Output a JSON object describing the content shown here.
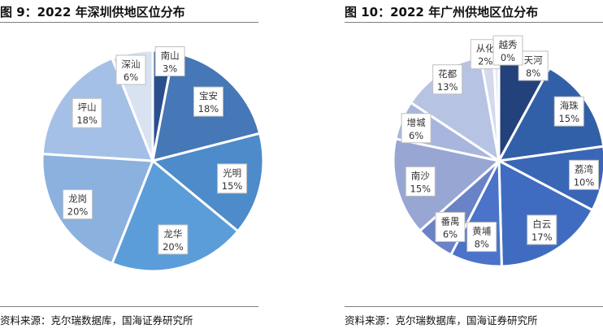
{
  "figures": [
    {
      "title": "图 9：2022 年深圳供地区位分布",
      "source": "资料来源：克尔瑞数据库，国海证券研究所"
    },
    {
      "title": "图 10：2022 年广州供地区位分布",
      "source": "资料来源：克尔瑞数据库，国海证券研究所"
    }
  ],
  "chart_data": [
    {
      "type": "pie",
      "title": "图 9：2022 年深圳供地区位分布",
      "categories": [
        "南山",
        "宝安",
        "光明",
        "龙华",
        "龙岗",
        "坪山",
        "深汕"
      ],
      "values": [
        3,
        18,
        15,
        20,
        20,
        18,
        6
      ],
      "labels": [
        "3%",
        "18%",
        "15%",
        "20%",
        "20%",
        "18%",
        "6%"
      ],
      "colors": [
        "#2a4f8c",
        "#4677b6",
        "#4d8bca",
        "#5b9dd9",
        "#8bb1df",
        "#a5c0e6",
        "#d8e2f1"
      ]
    },
    {
      "type": "pie",
      "title": "图 10：2022 年广州供地区位分布",
      "categories": [
        "天河",
        "海珠",
        "荔湾",
        "白云",
        "黄埔",
        "番禺",
        "南沙",
        "增城",
        "花都",
        "从化",
        "越秀"
      ],
      "values": [
        8,
        15,
        10,
        17,
        8,
        6,
        15,
        6,
        13,
        2,
        0
      ],
      "labels": [
        "8%",
        "15%",
        "10%",
        "17%",
        "8%",
        "6%",
        "15%",
        "6%",
        "13%",
        "2%",
        "0%"
      ],
      "colors": [
        "#23417a",
        "#3260a8",
        "#3a66b6",
        "#3f6cc1",
        "#4a73c9",
        "#6a82c6",
        "#98a6d4",
        "#a8b5dc",
        "#b7c3e2",
        "#d3daee",
        "#e6eaf5"
      ]
    }
  ]
}
